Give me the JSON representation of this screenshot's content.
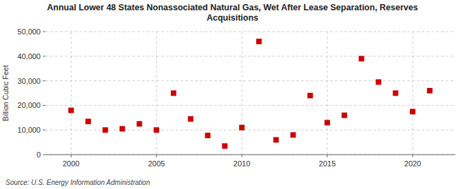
{
  "chart_data": {
    "type": "scatter",
    "title": "Annual Lower 48 States Nonassociated Natural Gas, Wet After Lease Separation, Reserves\nAcquisitions",
    "y_label": "Billion Cubic Feet",
    "source": "Source: U.S. Energy Information Administration",
    "x": [
      2000,
      2001,
      2002,
      2003,
      2004,
      2005,
      2006,
      2007,
      2008,
      2009,
      2010,
      2011,
      2012,
      2013,
      2014,
      2015,
      2016,
      2017,
      2018,
      2019,
      2020,
      2021
    ],
    "values": [
      18000,
      13500,
      10000,
      10500,
      12500,
      10000,
      25000,
      14500,
      7800,
      3500,
      11000,
      46000,
      6000,
      8000,
      24000,
      13000,
      16000,
      39000,
      29500,
      25000,
      17500,
      26000
    ],
    "color": "#cc0000",
    "marker": "square",
    "xlim": [
      1998.5,
      2022.5
    ],
    "xticks": [
      2000,
      2005,
      2010,
      2015,
      2020
    ],
    "ylim": [
      0,
      50000
    ],
    "yticks": [
      0,
      {
        "value": 10000,
        "label": "10,000"
      },
      {
        "value": 20000,
        "label": "20,000"
      },
      {
        "value": 30000,
        "label": "30,000"
      },
      {
        "value": 40000,
        "label": "40,000"
      },
      {
        "value": 50000,
        "label": "50,000"
      }
    ],
    "grid": true
  }
}
